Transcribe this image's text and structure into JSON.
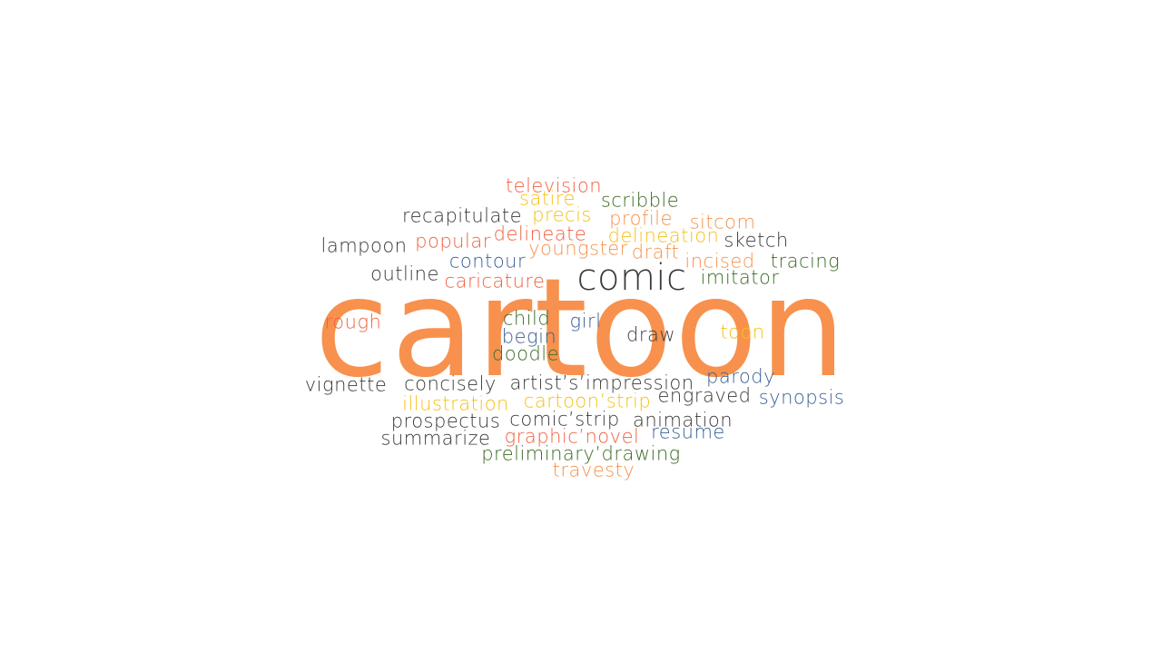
{
  "main_word": "cartoon",
  "words": {
    "comic": "comic",
    "television": "television",
    "satire": "satire",
    "scribble": "scribble",
    "recapitulate": "recapitulate",
    "precis": "precis",
    "profile": "profile",
    "sitcom": "sitcom",
    "lampoon": "lampoon",
    "popular": "popular",
    "delineate": "delineate",
    "delineation": "delineation",
    "youngster": "youngster",
    "draft": "draft",
    "sketch": "sketch",
    "contour": "contour",
    "incised": "incised",
    "tracing": "tracing",
    "outline": "outline",
    "caricature": "caricature",
    "imitator": "imitator",
    "rough": "rough",
    "child": "child",
    "girl": "girl",
    "begin": "begin",
    "draw": "draw",
    "toon": "toon",
    "doodle": "doodle",
    "vignette": "vignette",
    "concisely": "concisely",
    "artists_impression": "artist’s’impression",
    "parody": "parody",
    "illustration": "illustration",
    "cartoon_strip": "cartoon’strip",
    "engraved": "engraved",
    "synopsis": "synopsis",
    "prospectus": "prospectus",
    "comic_strip": "comic’strip",
    "animation": "animation",
    "summarize": "summarize",
    "graphic_novel": "graphic’novel",
    "resume": "resume",
    "preliminary_drawing": "preliminary’drawing",
    "travesty": "travesty"
  },
  "colors": {
    "orange": "#f7914d",
    "red": "#f0613f",
    "gold": "#f6c016",
    "green": "#3c6b25",
    "blue": "#3a5f95",
    "dark": "#3a3a3a"
  }
}
